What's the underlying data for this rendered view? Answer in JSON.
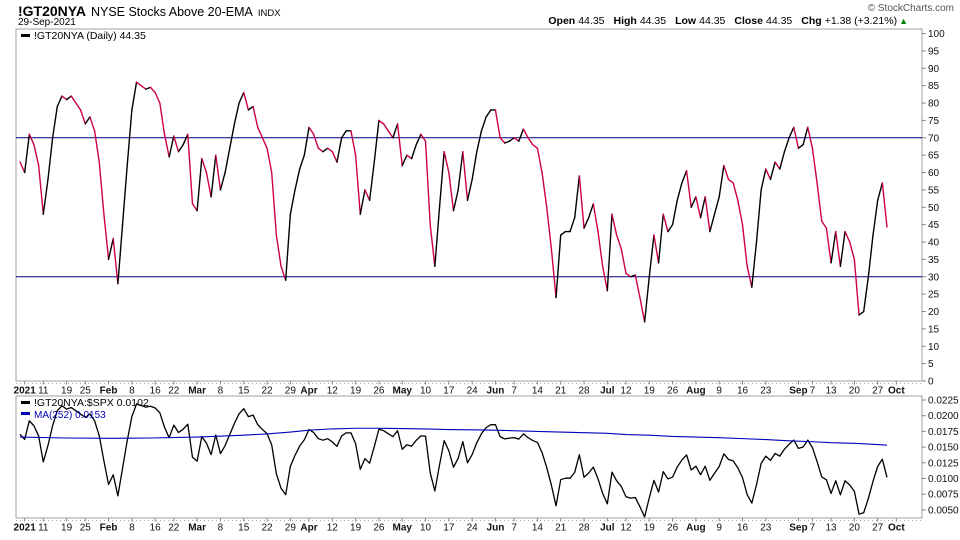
{
  "header": {
    "symbol": "!GT20NYA",
    "name": "NYSE Stocks Above 20-EMA",
    "exchange_tag": "INDX",
    "date": "29-Sep-2021",
    "copyright": "© StockCharts.com",
    "quote": {
      "open_label": "Open",
      "open": "44.35",
      "high_label": "High",
      "high": "44.35",
      "low_label": "Low",
      "low": "44.35",
      "close_label": "Close",
      "close": "44.35",
      "chg_label": "Chg",
      "chg": "+1.38 (+3.21%)",
      "direction_icon": "▲"
    }
  },
  "colors": {
    "up_line": "#000000",
    "down_line": "#cc0044",
    "overlay_hline": "#000080",
    "ratio_line": "#000000",
    "ma_line": "#0000bb",
    "border": "#a0a0a0",
    "axis_text": "#111111",
    "tick": "#888888",
    "chg_up_green": "#008000"
  },
  "x_axis": {
    "ticks": [
      {
        "label": "2021",
        "i": 1,
        "bold": true
      },
      {
        "label": "11",
        "i": 5
      },
      {
        "label": "19",
        "i": 10
      },
      {
        "label": "25",
        "i": 14
      },
      {
        "label": "Feb",
        "i": 19,
        "bold": true
      },
      {
        "label": "8",
        "i": 24
      },
      {
        "label": "16",
        "i": 29
      },
      {
        "label": "22",
        "i": 33
      },
      {
        "label": "Mar",
        "i": 38,
        "bold": true
      },
      {
        "label": "8",
        "i": 43
      },
      {
        "label": "15",
        "i": 48
      },
      {
        "label": "22",
        "i": 53
      },
      {
        "label": "29",
        "i": 58
      },
      {
        "label": "Apr",
        "i": 62,
        "bold": true
      },
      {
        "label": "12",
        "i": 67
      },
      {
        "label": "19",
        "i": 72
      },
      {
        "label": "26",
        "i": 77
      },
      {
        "label": "May",
        "i": 82,
        "bold": true
      },
      {
        "label": "10",
        "i": 87
      },
      {
        "label": "17",
        "i": 92
      },
      {
        "label": "24",
        "i": 97
      },
      {
        "label": "Jun",
        "i": 102,
        "bold": true
      },
      {
        "label": "7",
        "i": 106
      },
      {
        "label": "14",
        "i": 111
      },
      {
        "label": "21",
        "i": 116
      },
      {
        "label": "28",
        "i": 121
      },
      {
        "label": "Jul",
        "i": 126,
        "bold": true
      },
      {
        "label": "12",
        "i": 130
      },
      {
        "label": "19",
        "i": 135
      },
      {
        "label": "26",
        "i": 140
      },
      {
        "label": "Aug",
        "i": 145,
        "bold": true
      },
      {
        "label": "9",
        "i": 150
      },
      {
        "label": "16",
        "i": 155
      },
      {
        "label": "23",
        "i": 160
      },
      {
        "label": "Sep",
        "i": 167,
        "bold": true
      },
      {
        "label": "7",
        "i": 170
      },
      {
        "label": "13",
        "i": 174
      },
      {
        "label": "20",
        "i": 179
      },
      {
        "label": "27",
        "i": 184
      },
      {
        "label": "Oct",
        "i": 188,
        "bold": true
      }
    ]
  },
  "chart_data": [
    {
      "panel": "price",
      "type": "line",
      "title": "!GT20NYA (Daily)",
      "legend": "!GT20NYA (Daily) 44.35",
      "ylim": [
        0,
        100
      ],
      "y_ticks": [
        100,
        95,
        90,
        85,
        80,
        75,
        70,
        65,
        60,
        55,
        50,
        45,
        40,
        35,
        30,
        25,
        20,
        15,
        10,
        5,
        0
      ],
      "hlines": [
        70,
        30
      ],
      "coloring": "black when rising, crimson when falling",
      "values": [
        63,
        60,
        71,
        68,
        62,
        48,
        58,
        70,
        79,
        82,
        81,
        82,
        80,
        78,
        74,
        76,
        72,
        63,
        48,
        35,
        41,
        28,
        45,
        62,
        78,
        86,
        85,
        84,
        84.5,
        83,
        80,
        71,
        64.5,
        70.5,
        66,
        68,
        71,
        51,
        49,
        64,
        60,
        53,
        65,
        55,
        60,
        67,
        74,
        80,
        83,
        78,
        79,
        73,
        70,
        67,
        60,
        42,
        33,
        29,
        48,
        55,
        61,
        65,
        73,
        71,
        67,
        66,
        67,
        66,
        63,
        70,
        72,
        72,
        65,
        48,
        55,
        52,
        63,
        75,
        74,
        72,
        70,
        74,
        62,
        65,
        64,
        68,
        71,
        69,
        45,
        33,
        50,
        66,
        60,
        49,
        55,
        66,
        52,
        58,
        66,
        72,
        76,
        78,
        78,
        70,
        68.5,
        69,
        70,
        69,
        72.5,
        70,
        68,
        67,
        60,
        50,
        38,
        24,
        42,
        43,
        43,
        47,
        59,
        44,
        47,
        51,
        43,
        33,
        26,
        48,
        42,
        38,
        31,
        30,
        30.5,
        24,
        17,
        30,
        42,
        34,
        48,
        43,
        45,
        52,
        57,
        60.5,
        50,
        53,
        47,
        53,
        43,
        48,
        53,
        62,
        58,
        57,
        52,
        45,
        33,
        27,
        40,
        55,
        61,
        58,
        63,
        61,
        66,
        70,
        73,
        67,
        68,
        73,
        67,
        57,
        46,
        44,
        34,
        43,
        33,
        43,
        40,
        35,
        19,
        20,
        30,
        42,
        52,
        57,
        44.35
      ]
    },
    {
      "panel": "ratio",
      "type": "line",
      "ylim": [
        0.0037,
        0.0231
      ],
      "y_ticks": [
        0.0225,
        0.02,
        0.0175,
        0.015,
        0.0125,
        0.01,
        0.0075,
        0.005
      ],
      "series": [
        {
          "name": "!GT20NYA:$SPX",
          "legend": "!GT20NYA:$SPX 0.0102",
          "color": "#000000",
          "values": [
            0.01703,
            0.01622,
            0.01919,
            0.01838,
            0.01676,
            0.01263,
            0.01526,
            0.01842,
            0.02079,
            0.02158,
            0.02104,
            0.0213,
            0.02078,
            0.02026,
            0.01973,
            0.02027,
            0.0192,
            0.0168,
            0.0128,
            0.00904,
            0.01059,
            0.00723,
            0.01163,
            0.01602,
            0.01985,
            0.02188,
            0.02163,
            0.02137,
            0.0215,
            0.02123,
            0.02046,
            0.01816,
            0.0165,
            0.0185,
            0.01732,
            0.01785,
            0.01864,
            0.01339,
            0.01276,
            0.01667,
            0.01563,
            0.0138,
            0.01693,
            0.01396,
            0.01523,
            0.01701,
            0.01878,
            0.0203,
            0.02112,
            0.01985,
            0.0201,
            0.01858,
            0.01781,
            0.01714,
            0.01535,
            0.01074,
            0.00844,
            0.00742,
            0.01194,
            0.01368,
            0.01517,
            0.01617,
            0.0178,
            0.01732,
            0.01634,
            0.0161,
            0.01634,
            0.01583,
            0.01511,
            0.01679,
            0.01727,
            0.01727,
            0.01555,
            0.01148,
            0.01316,
            0.01244,
            0.01507,
            0.01786,
            0.01762,
            0.01714,
            0.01667,
            0.01762,
            0.01466,
            0.01537,
            0.01513,
            0.01608,
            0.01679,
            0.01675,
            0.01092,
            0.00801,
            0.01214,
            0.01602,
            0.01442,
            0.01178,
            0.01322,
            0.01587,
            0.0125,
            0.01381,
            0.01571,
            0.01714,
            0.0181,
            0.01857,
            0.01857,
            0.01667,
            0.01631,
            0.01643,
            0.01651,
            0.01627,
            0.0171,
            0.01651,
            0.01604,
            0.01576,
            0.01412,
            0.01176,
            0.00894,
            0.00565,
            0.00981,
            0.01005,
            0.01005,
            0.01098,
            0.01379,
            0.01019,
            0.01088,
            0.01181,
            0.00995,
            0.00764,
            0.00596,
            0.01101,
            0.00963,
            0.00872,
            0.00709,
            0.00687,
            0.00698,
            0.00549,
            0.00389,
            0.00693,
            0.0097,
            0.00785,
            0.01109,
            0.00993,
            0.01023,
            0.01182,
            0.01295,
            0.01375,
            0.01136,
            0.01196,
            0.01061,
            0.01196,
            0.00971,
            0.01084,
            0.01191,
            0.01393,
            0.01303,
            0.01281,
            0.01169,
            0.01014,
            0.00743,
            0.00608,
            0.00901,
            0.01239,
            0.01356,
            0.01289,
            0.014,
            0.01356,
            0.01467,
            0.01545,
            0.01612,
            0.01479,
            0.01501,
            0.01612,
            0.01492,
            0.0127,
            0.01024,
            0.0098,
            0.00762,
            0.00964,
            0.0074,
            0.00964,
            0.00897,
            0.00795,
            0.00432,
            0.00455,
            0.00682,
            0.00955,
            0.01193,
            0.01307,
            0.01017
          ]
        },
        {
          "name": "MA(252)",
          "legend": "MA(252) 0.0153",
          "color": "#0000bb",
          "anchors": [
            [
              0,
              0.0166
            ],
            [
              10,
              0.01645
            ],
            [
              19,
              0.0164
            ],
            [
              28,
              0.01645
            ],
            [
              38,
              0.0166
            ],
            [
              48,
              0.0169
            ],
            [
              53,
              0.0171
            ],
            [
              58,
              0.0174
            ],
            [
              62,
              0.0177
            ],
            [
              67,
              0.0179
            ],
            [
              72,
              0.018
            ],
            [
              77,
              0.018
            ],
            [
              82,
              0.01795
            ],
            [
              87,
              0.0179
            ],
            [
              92,
              0.0178
            ],
            [
              97,
              0.01775
            ],
            [
              102,
              0.0177
            ],
            [
              111,
              0.0175
            ],
            [
              116,
              0.0174
            ],
            [
              121,
              0.0173
            ],
            [
              126,
              0.0172
            ],
            [
              130,
              0.017
            ],
            [
              135,
              0.0169
            ],
            [
              140,
              0.0167
            ],
            [
              145,
              0.0166
            ],
            [
              150,
              0.0165
            ],
            [
              155,
              0.01635
            ],
            [
              160,
              0.0162
            ],
            [
              165,
              0.016
            ],
            [
              170,
              0.01585
            ],
            [
              174,
              0.0157
            ],
            [
              179,
              0.0156
            ],
            [
              184,
              0.0154
            ],
            [
              186,
              0.0153
            ]
          ]
        }
      ]
    }
  ]
}
